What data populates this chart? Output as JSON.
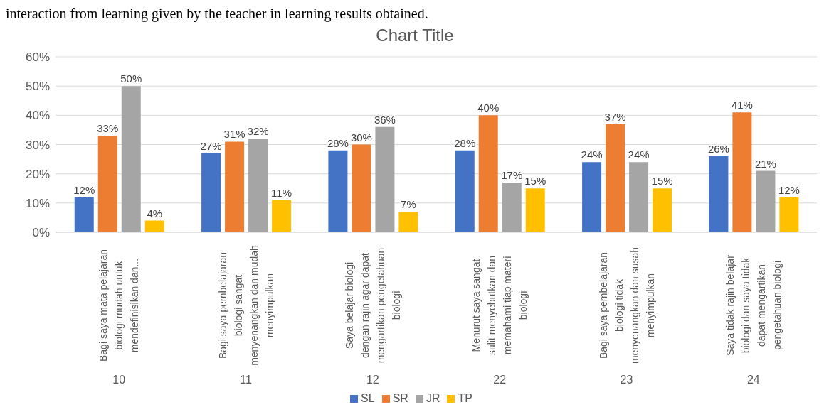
{
  "chart_data": {
    "type": "bar",
    "title": "Chart Title",
    "categories": [
      "Bagi saya mata pelajaran biologi mudah untuk mendefinisikan dan...",
      "Bagi saya pembelajaran biologi sangat menyenangkan dan mudah menyimpulkan",
      "Saya belajar biologi dengan rajin agar dapat mengartikan pengetahuan biologi",
      "Menurut saya sangat sulit menyebutkan dan memahami tiap materi biologi",
      "Bagi saya pembelajaran biologi tidak menyenangkan dan susah menyimpulkan",
      "Saya tidak rajin belajar biologi dan saya tidak dapat mengartikan pengetahuan biologi"
    ],
    "series": [
      {
        "name": "SL",
        "color": "#4472c4",
        "values": [
          12,
          27,
          28,
          28,
          24,
          26
        ],
        "value_labels": [
          "12%",
          "27%",
          "28%",
          "28%",
          "24%",
          "26%"
        ]
      },
      {
        "name": "SR",
        "color": "#ed7d31",
        "values": [
          33,
          31,
          30,
          40,
          37,
          41
        ],
        "value_labels": [
          "33%",
          "31%",
          "30%",
          "40%",
          "37%",
          "41%"
        ]
      },
      {
        "name": "JR",
        "color": "#a5a5a5",
        "values": [
          50,
          32,
          36,
          17,
          24,
          21
        ],
        "value_labels": [
          "50%",
          "32%",
          "36%",
          "17%",
          "24%",
          "21%"
        ]
      },
      {
        "name": "TP",
        "color": "#ffc000",
        "values": [
          4,
          11,
          7,
          15,
          15,
          12
        ],
        "value_labels": [
          "4%",
          "11%",
          "7%",
          "15%",
          "15%",
          "12%"
        ]
      }
    ],
    "ylim": [
      0,
      60
    ],
    "yticks": [
      {
        "value": 0,
        "label": "0%"
      },
      {
        "value": 10,
        "label": "10%"
      },
      {
        "value": 20,
        "label": "20%"
      },
      {
        "value": 30,
        "label": "30%"
      },
      {
        "value": 40,
        "label": "40%"
      },
      {
        "value": 50,
        "label": "50%"
      },
      {
        "value": 60,
        "label": "60%"
      }
    ],
    "grid": "y",
    "legend": "bottom",
    "annotations": [
      "interaction from learning given by the teacher in learning results obtained.",
      "10",
      "11",
      "12",
      "22",
      "23",
      "24"
    ]
  }
}
